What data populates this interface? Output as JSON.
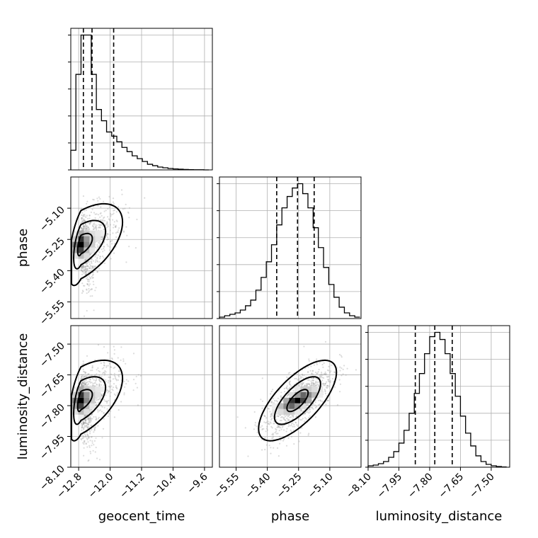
{
  "chart_data": {
    "type": "corner",
    "parameters": [
      "geocent_time",
      "phase",
      "luminosity_distance"
    ],
    "axes": {
      "geocent_time": {
        "label": "geocent_time",
        "range": [
          -13.0,
          -9.4
        ],
        "ticks": [
          -12.8,
          -12.0,
          -11.2,
          -10.4,
          -9.6
        ],
        "tick_labels": [
          "−12.8",
          "−12.0",
          "−11.2",
          "−10.4",
          "−9.6"
        ]
      },
      "phase": {
        "label": "phase",
        "range": [
          -5.63,
          -4.95
        ],
        "ticks": [
          -5.55,
          -5.4,
          -5.25,
          -5.1
        ],
        "tick_labels": [
          "−5.55",
          "−5.40",
          "−5.25",
          "−5.10"
        ]
      },
      "luminosity_distance": {
        "label": "luminosity_distance",
        "range": [
          -8.1,
          -7.41
        ],
        "ticks": [
          -8.1,
          -7.95,
          -7.8,
          -7.65,
          -7.5
        ],
        "tick_labels": [
          "−8.10",
          "−7.95",
          "−7.80",
          "−7.65",
          "−7.50"
        ]
      }
    },
    "grid": true,
    "marginals": [
      {
        "param": "geocent_time",
        "quantiles": [
          -12.68,
          -12.46,
          -11.91
        ],
        "bins": [
          -13.0,
          -12.87,
          -12.74,
          -12.61,
          -12.48,
          -12.35,
          -12.22,
          -12.09,
          -11.96,
          -11.83,
          -11.7,
          -11.57,
          -11.44,
          -11.31,
          -11.18,
          -11.05,
          -10.92,
          -10.79,
          -10.66,
          -10.53,
          -10.4,
          -10.27,
          -10.14,
          -10.01,
          -9.88,
          -9.75,
          -9.62,
          -9.49
        ],
        "counts": [
          0.14,
          0.68,
          0.96,
          0.96,
          0.68,
          0.43,
          0.35,
          0.27,
          0.24,
          0.2,
          0.16,
          0.13,
          0.1,
          0.08,
          0.06,
          0.04,
          0.03,
          0.02,
          0.015,
          0.01,
          0.007,
          0.005,
          0.003,
          0.002,
          0.001,
          0.001,
          0.0
        ]
      },
      {
        "param": "phase",
        "quantiles": [
          -5.355,
          -5.255,
          -5.175
        ],
        "bins": [
          -5.63,
          -5.605,
          -5.58,
          -5.555,
          -5.53,
          -5.505,
          -5.48,
          -5.455,
          -5.43,
          -5.405,
          -5.38,
          -5.355,
          -5.33,
          -5.305,
          -5.28,
          -5.255,
          -5.23,
          -5.205,
          -5.18,
          -5.155,
          -5.13,
          -5.105,
          -5.08,
          -5.055,
          -5.03,
          -5.005,
          -4.98,
          -4.955
        ],
        "counts": [
          0.01,
          0.02,
          0.03,
          0.04,
          0.06,
          0.09,
          0.13,
          0.2,
          0.29,
          0.4,
          0.52,
          0.66,
          0.78,
          0.86,
          0.92,
          0.95,
          0.88,
          0.78,
          0.64,
          0.5,
          0.36,
          0.24,
          0.15,
          0.08,
          0.04,
          0.02,
          0.01
        ]
      },
      {
        "param": "luminosity_distance",
        "quantiles": [
          -7.87,
          -7.775,
          -7.69
        ],
        "bins": [
          -8.1,
          -8.075,
          -8.05,
          -8.025,
          -8.0,
          -7.975,
          -7.95,
          -7.925,
          -7.9,
          -7.875,
          -7.85,
          -7.825,
          -7.8,
          -7.775,
          -7.75,
          -7.725,
          -7.7,
          -7.675,
          -7.65,
          -7.625,
          -7.6,
          -7.575,
          -7.55,
          -7.525,
          -7.5,
          -7.475,
          -7.45,
          -7.425
        ],
        "counts": [
          0.01,
          0.015,
          0.025,
          0.04,
          0.07,
          0.11,
          0.17,
          0.26,
          0.38,
          0.52,
          0.66,
          0.8,
          0.92,
          0.95,
          0.9,
          0.8,
          0.66,
          0.5,
          0.36,
          0.24,
          0.15,
          0.08,
          0.04,
          0.02,
          0.01,
          0.005,
          0.002
        ]
      }
    ],
    "joint": [
      {
        "x": "geocent_time",
        "y": "phase",
        "mode": [
          -12.74,
          -5.275
        ],
        "correlation": 0.55
      },
      {
        "x": "geocent_time",
        "y": "luminosity_distance",
        "mode": [
          -12.74,
          -7.775
        ],
        "correlation": 0.55
      },
      {
        "x": "phase",
        "y": "luminosity_distance",
        "mode": [
          -5.255,
          -7.775
        ],
        "correlation": 0.7
      }
    ]
  }
}
